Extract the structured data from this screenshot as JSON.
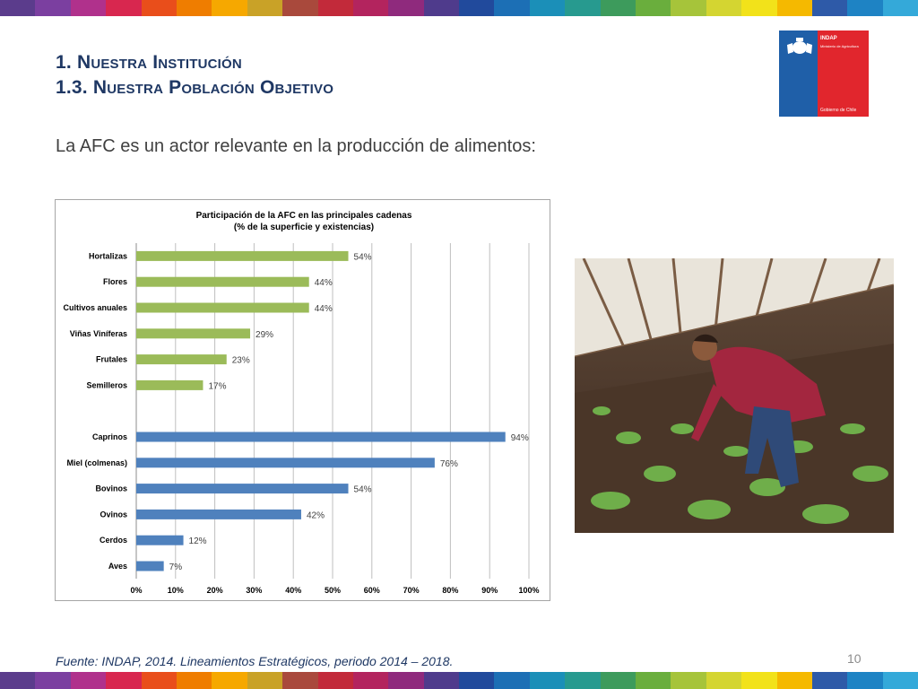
{
  "header": {
    "line1": "1. Nuestra Institución",
    "line2": "1.3. Nuestra Población Objetivo"
  },
  "subtitle": "La AFC es un actor relevante en la producción de alimentos:",
  "logo": {
    "name": "INDAP",
    "ministry": "Ministerio de Agricultura",
    "gov": "Gobierno de Chile"
  },
  "stripe_colors": [
    "#5b3c8c",
    "#7b3fa0",
    "#b0318c",
    "#d8274f",
    "#e94e1b",
    "#ef7d00",
    "#f6a800",
    "#c9a227",
    "#a9493c",
    "#c22a3a",
    "#b3245e",
    "#8f2a7d",
    "#4f3b8c",
    "#214a9c",
    "#1c6fb5",
    "#1b8fb8",
    "#279a8f",
    "#3d9b5c",
    "#6aae3d",
    "#a6c43a",
    "#d4d531",
    "#f2e21a",
    "#f5b900",
    "#2e5aa8",
    "#1e83c4",
    "#34a9d9"
  ],
  "chart_data": {
    "type": "bar",
    "orientation": "horizontal",
    "title_line1": "Participación de la AFC  en las principales cadenas",
    "title_line2": "(% de la superficie y existencias)",
    "series": [
      {
        "color": "#9bbb59",
        "categories": [
          "Hortalizas",
          "Flores",
          "Cultivos anuales",
          "Viñas Viníferas",
          "Frutales",
          "Semilleros"
        ],
        "values": [
          54,
          44,
          44,
          29,
          23,
          17
        ],
        "labels": [
          "54%",
          "44%",
          "44%",
          "29%",
          "23%",
          "17%"
        ]
      },
      {
        "color": "#4f81bd",
        "categories": [
          "Caprinos",
          "Miel (colmenas)",
          "Bovinos",
          "Ovinos",
          "Cerdos",
          "Aves"
        ],
        "values": [
          94,
          76,
          54,
          42,
          12,
          7
        ],
        "labels": [
          "94%",
          "76%",
          "54%",
          "42%",
          "12%",
          "7%"
        ]
      }
    ],
    "xlim": [
      0,
      100
    ],
    "xticks": [
      "0%",
      "10%",
      "20%",
      "30%",
      "40%",
      "50%",
      "60%",
      "70%",
      "80%",
      "90%",
      "100%"
    ],
    "grid": true
  },
  "footer": "Fuente: INDAP, 2014. Lineamientos Estratégicos, periodo 2014 – 2018.",
  "page_number": "10"
}
